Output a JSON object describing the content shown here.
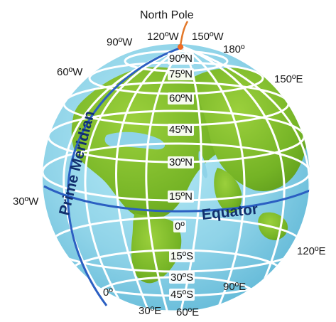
{
  "title": "North Pole",
  "colors": {
    "ocean": "#8fd3e8",
    "land": "#7ab929",
    "grid": "#ffffff",
    "equator_line": "#2b5fc2",
    "prime_meridian_line": "#2b5fc2",
    "label_text": "#1a1a1a",
    "highlight_text": "#12306e"
  },
  "special_lines": {
    "equator": "Equator",
    "prime_meridian": "Prime Meridian"
  },
  "latitudes": {
    "n90": "90ºN",
    "n75": "75ºN",
    "n60": "60ºN",
    "n45": "45ºN",
    "n30": "30ºN",
    "n15": "15ºN",
    "zero": "0º",
    "s15": "15ºS",
    "s30": "30ºS",
    "s45": "45ºS"
  },
  "longitudes": {
    "w120": "120ºW",
    "w150": "150ºW",
    "w90": "90ºW",
    "w60": "60ºW",
    "w30": "30ºW",
    "e180": "180º",
    "e150": "150ºE",
    "e120": "120ºE",
    "e90": "90ºE",
    "e60": "60ºE",
    "e30": "30ºE",
    "zero": "0º"
  }
}
